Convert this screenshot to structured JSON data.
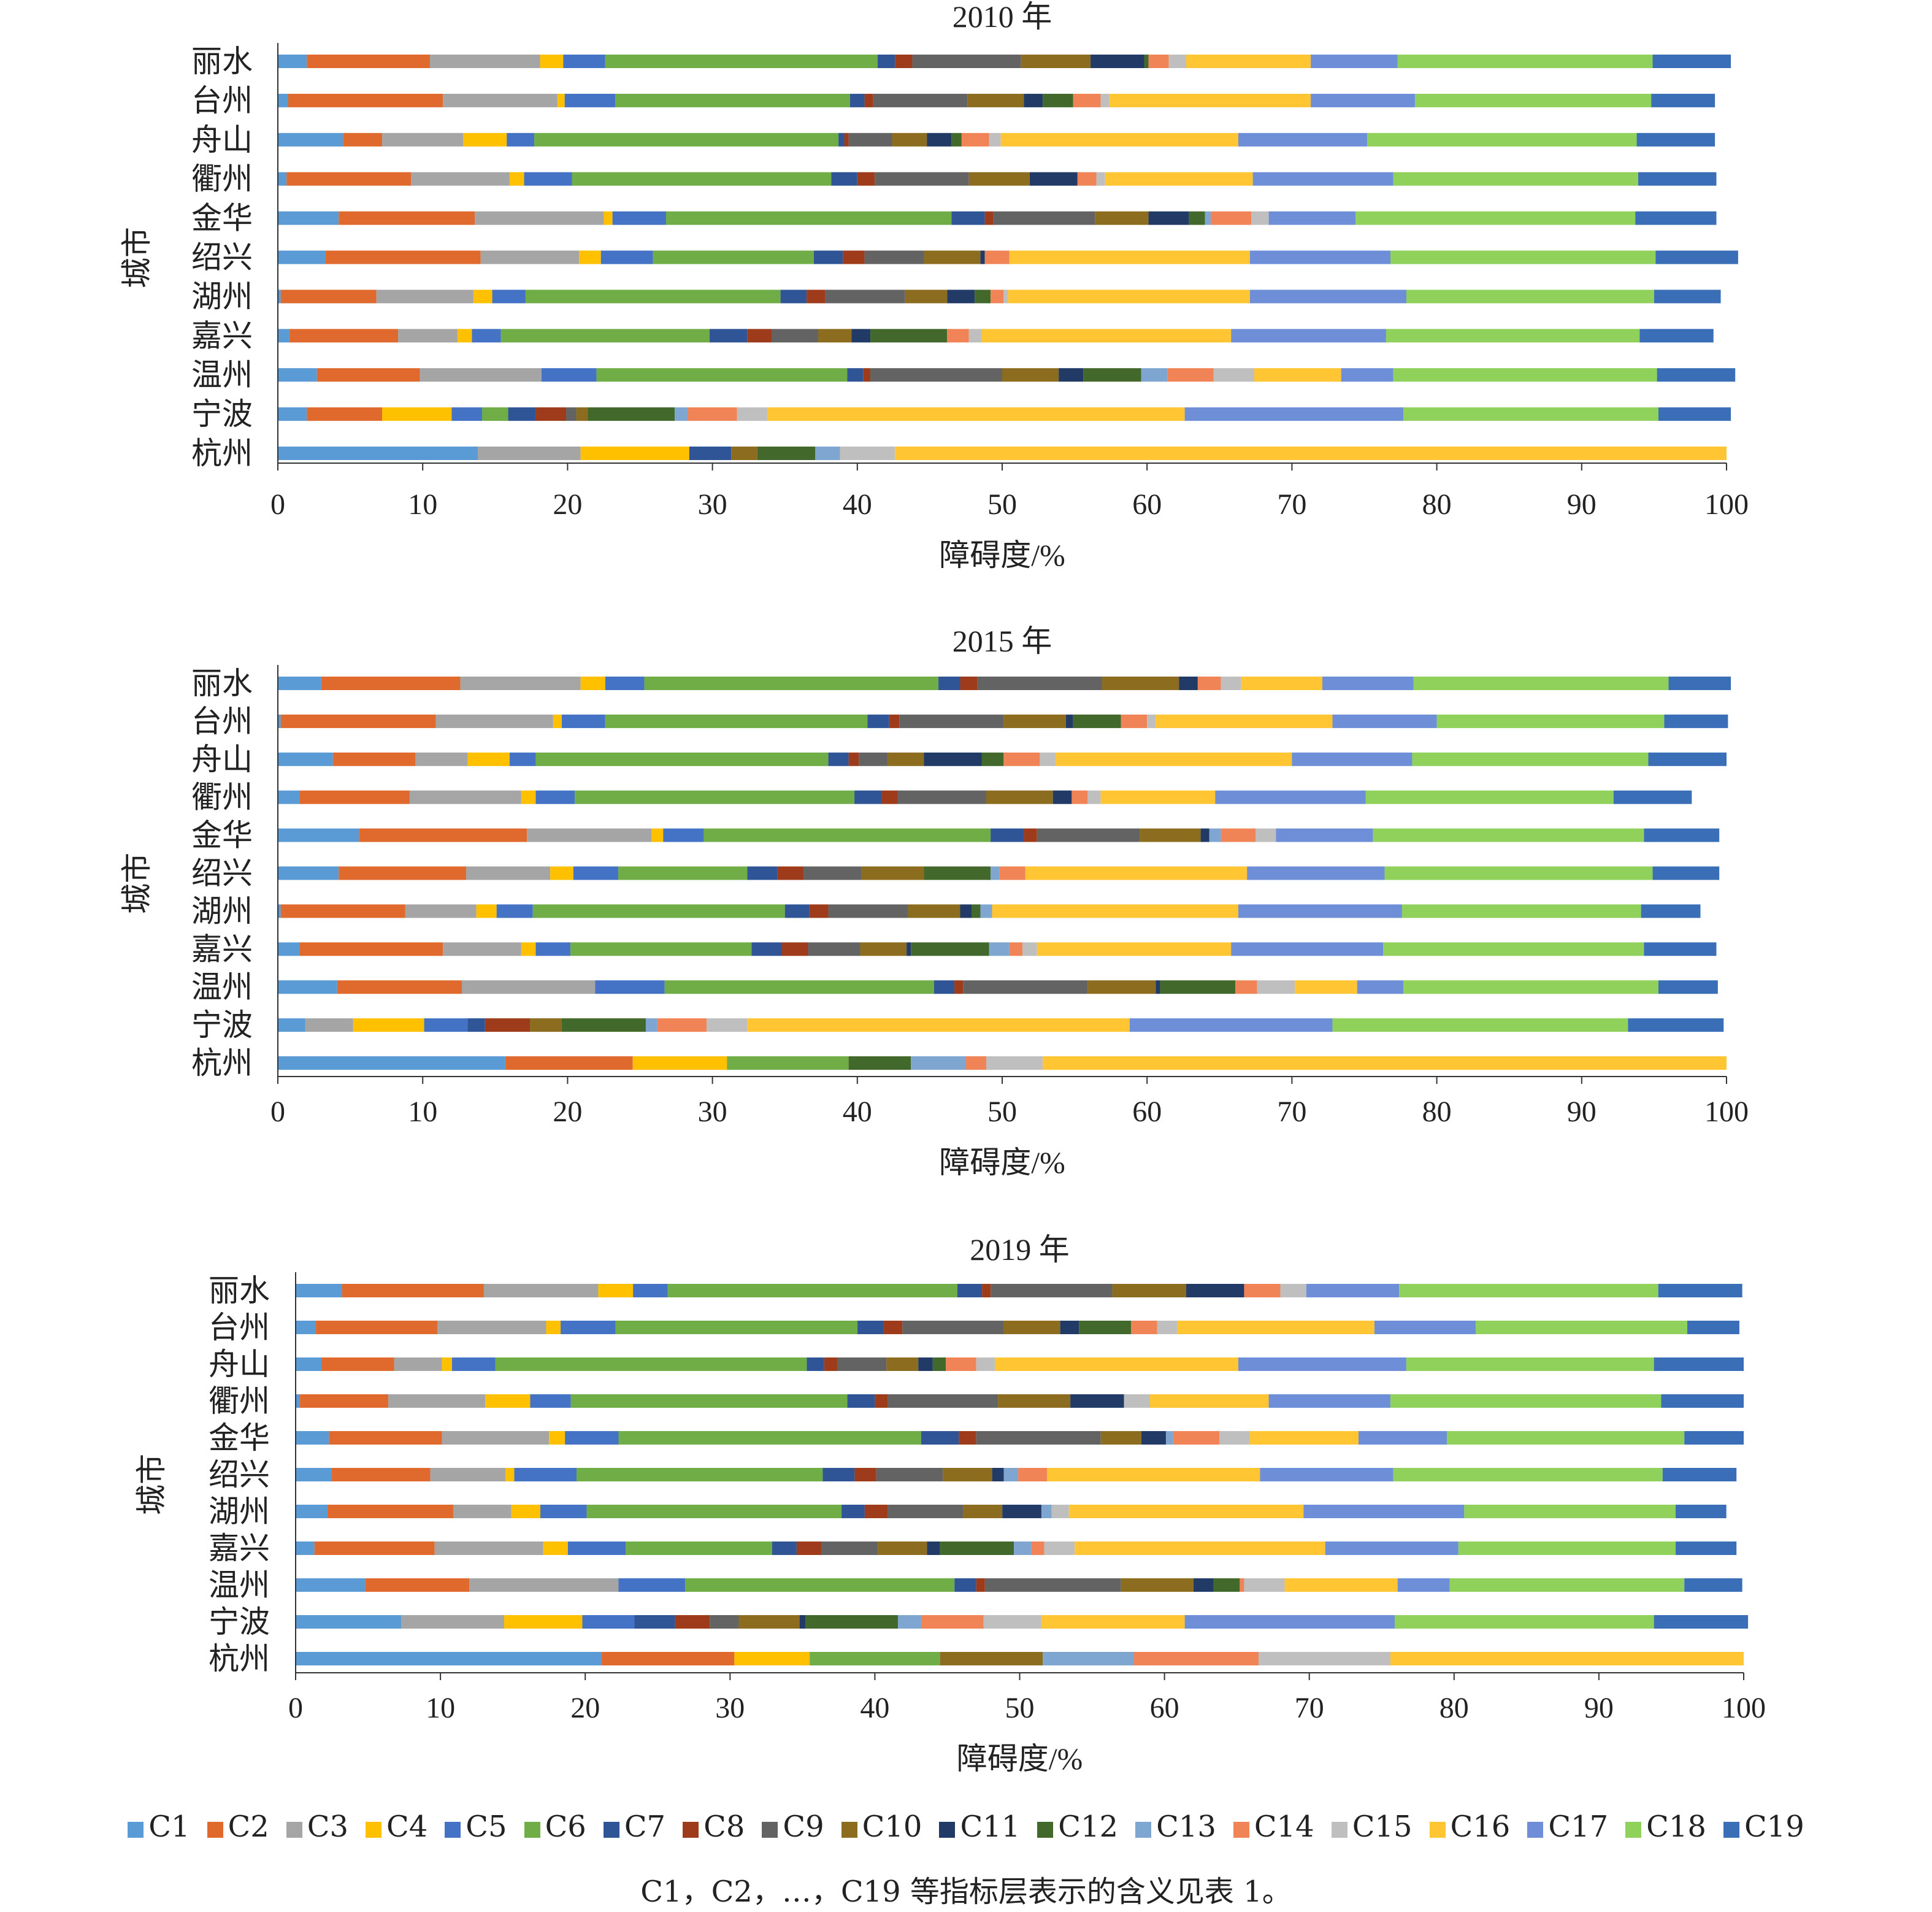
{
  "chart_data": [
    {
      "type": "bar",
      "orientation": "horizontal",
      "stacked": true,
      "title": "2010 年",
      "xlabel": "障碍度/%",
      "ylabel": "城市",
      "xlim": [
        0,
        100
      ],
      "xticks": [
        0,
        10,
        20,
        30,
        40,
        50,
        60,
        70,
        80,
        90,
        100
      ],
      "grid": false,
      "categories": [
        "丽水",
        "台州",
        "舟山",
        "衢州",
        "金华",
        "绍兴",
        "湖州",
        "嘉兴",
        "温州",
        "宁波",
        "杭州"
      ],
      "series": [
        {
          "name": "C1",
          "values": [
            2.0,
            0.7,
            4.5,
            0.6,
            4.2,
            3.3,
            0.2,
            0.8,
            2.7,
            2.0,
            13.8
          ]
        },
        {
          "name": "C2",
          "values": [
            8.5,
            10.7,
            2.7,
            8.6,
            9.4,
            10.7,
            6.6,
            7.5,
            7.1,
            5.2,
            0.0
          ]
        },
        {
          "name": "C3",
          "values": [
            7.6,
            7.9,
            5.6,
            6.8,
            8.9,
            6.8,
            6.7,
            4.1,
            8.4,
            0.0,
            7.1
          ]
        },
        {
          "name": "C4",
          "values": [
            1.6,
            0.5,
            3.0,
            1.0,
            0.6,
            1.5,
            1.3,
            1.0,
            0.0,
            4.8,
            7.5
          ]
        },
        {
          "name": "C5",
          "values": [
            2.9,
            3.5,
            1.9,
            3.3,
            3.7,
            3.6,
            2.3,
            2.0,
            3.8,
            2.1,
            0.0
          ]
        },
        {
          "name": "C6",
          "values": [
            18.8,
            16.2,
            21.0,
            17.9,
            19.7,
            11.1,
            17.6,
            14.4,
            17.3,
            1.8,
            0.0
          ]
        },
        {
          "name": "C7",
          "values": [
            1.2,
            1.0,
            0.4,
            1.8,
            2.3,
            2.0,
            1.8,
            2.6,
            1.1,
            1.9,
            2.9
          ]
        },
        {
          "name": "C8",
          "values": [
            1.2,
            0.6,
            0.3,
            1.2,
            0.6,
            1.5,
            1.3,
            1.7,
            0.5,
            2.1,
            0.0
          ]
        },
        {
          "name": "C9",
          "values": [
            7.5,
            6.5,
            3.0,
            6.5,
            7.0,
            4.1,
            5.5,
            3.2,
            9.1,
            0.7,
            0.0
          ]
        },
        {
          "name": "C10",
          "values": [
            4.8,
            3.9,
            2.4,
            4.2,
            3.7,
            3.9,
            2.9,
            2.3,
            3.9,
            0.8,
            1.8
          ]
        },
        {
          "name": "C11",
          "values": [
            3.7,
            1.3,
            1.7,
            3.3,
            2.8,
            0.3,
            1.9,
            1.3,
            1.7,
            0.0,
            0.0
          ]
        },
        {
          "name": "C12",
          "values": [
            0.3,
            2.1,
            0.7,
            0.0,
            1.1,
            0.0,
            1.1,
            5.3,
            4.0,
            6.0,
            4.0
          ]
        },
        {
          "name": "C13",
          "values": [
            0.0,
            0.0,
            0.0,
            0.0,
            0.4,
            0.0,
            0.0,
            0.0,
            1.8,
            0.9,
            1.7
          ]
        },
        {
          "name": "C14",
          "values": [
            1.4,
            1.9,
            1.9,
            1.3,
            2.8,
            1.7,
            0.9,
            1.5,
            3.2,
            3.4,
            0.0
          ]
        },
        {
          "name": "C15",
          "values": [
            1.2,
            0.6,
            0.8,
            0.6,
            1.2,
            0.0,
            0.3,
            0.9,
            2.8,
            2.1,
            3.8
          ]
        },
        {
          "name": "C16",
          "values": [
            8.6,
            13.9,
            16.4,
            10.2,
            0.0,
            16.6,
            16.7,
            17.2,
            6.0,
            28.8,
            57.4
          ]
        },
        {
          "name": "C17",
          "values": [
            6.0,
            7.2,
            8.9,
            9.7,
            6.0,
            9.7,
            10.8,
            10.7,
            3.6,
            15.1,
            0.0
          ]
        },
        {
          "name": "C18",
          "values": [
            17.6,
            16.3,
            18.6,
            16.9,
            19.3,
            18.3,
            17.1,
            17.5,
            18.2,
            17.6,
            0.0
          ]
        },
        {
          "name": "C19",
          "values": [
            5.4,
            4.4,
            5.4,
            5.4,
            5.6,
            5.7,
            4.6,
            5.1,
            5.4,
            5.0,
            0.0
          ]
        }
      ]
    },
    {
      "type": "bar",
      "orientation": "horizontal",
      "stacked": true,
      "title": "2015 年",
      "xlabel": "障碍度/%",
      "ylabel": "城市",
      "xlim": [
        0,
        100
      ],
      "xticks": [
        0,
        10,
        20,
        30,
        40,
        50,
        60,
        70,
        80,
        90,
        100
      ],
      "grid": false,
      "categories": [
        "丽水",
        "台州",
        "舟山",
        "衢州",
        "金华",
        "绍兴",
        "湖州",
        "嘉兴",
        "温州",
        "宁波",
        "杭州"
      ],
      "series": [
        {
          "name": "C1",
          "values": [
            3.0,
            0.2,
            3.8,
            1.5,
            5.6,
            4.2,
            0.2,
            1.5,
            4.1,
            1.9,
            15.7
          ]
        },
        {
          "name": "C2",
          "values": [
            9.6,
            10.7,
            5.7,
            7.6,
            11.6,
            8.8,
            8.6,
            9.9,
            8.6,
            0.0,
            8.8
          ]
        },
        {
          "name": "C3",
          "values": [
            8.3,
            8.1,
            3.6,
            7.7,
            8.6,
            5.8,
            4.9,
            5.4,
            9.2,
            3.3,
            0.0
          ]
        },
        {
          "name": "C4",
          "values": [
            1.7,
            0.6,
            2.9,
            1.0,
            0.8,
            1.6,
            1.4,
            1.0,
            0.0,
            4.9,
            6.5
          ]
        },
        {
          "name": "C5",
          "values": [
            2.7,
            3.0,
            1.8,
            2.7,
            2.8,
            3.1,
            2.5,
            2.4,
            4.8,
            3.0,
            0.0
          ]
        },
        {
          "name": "C6",
          "values": [
            20.3,
            18.1,
            20.2,
            19.3,
            19.8,
            8.9,
            17.4,
            12.5,
            18.6,
            0.0,
            8.4
          ]
        },
        {
          "name": "C7",
          "values": [
            1.5,
            1.5,
            1.4,
            1.9,
            2.3,
            2.1,
            1.7,
            2.1,
            1.4,
            1.2,
            0.0
          ]
        },
        {
          "name": "C8",
          "values": [
            1.2,
            0.7,
            0.7,
            1.1,
            0.9,
            1.8,
            1.3,
            1.8,
            0.6,
            3.1,
            0.0
          ]
        },
        {
          "name": "C9",
          "values": [
            8.6,
            7.2,
            2.0,
            6.1,
            7.1,
            4.0,
            5.5,
            3.6,
            8.6,
            0.0,
            0.0
          ]
        },
        {
          "name": "C10",
          "values": [
            5.3,
            4.3,
            2.5,
            4.6,
            4.2,
            4.3,
            3.6,
            3.2,
            4.7,
            2.2,
            0.0
          ]
        },
        {
          "name": "C11",
          "values": [
            1.3,
            0.5,
            4.0,
            1.3,
            0.6,
            0.0,
            0.8,
            0.3,
            0.3,
            0.0,
            0.0
          ]
        },
        {
          "name": "C12",
          "values": [
            0.0,
            3.3,
            1.5,
            0.0,
            0.0,
            4.6,
            0.6,
            5.4,
            5.2,
            5.8,
            4.3
          ]
        },
        {
          "name": "C13",
          "values": [
            0.0,
            0.0,
            0.0,
            0.0,
            0.8,
            0.6,
            0.8,
            1.4,
            0.0,
            0.8,
            3.8
          ]
        },
        {
          "name": "C14",
          "values": [
            1.6,
            1.8,
            2.5,
            1.1,
            2.4,
            1.8,
            0.0,
            0.9,
            1.5,
            3.4,
            1.4
          ]
        },
        {
          "name": "C15",
          "values": [
            1.4,
            0.6,
            1.1,
            0.9,
            1.4,
            0.0,
            0.0,
            1.0,
            2.6,
            2.8,
            3.9
          ]
        },
        {
          "name": "C16",
          "values": [
            5.6,
            12.2,
            16.3,
            7.9,
            0.0,
            15.3,
            17.0,
            13.4,
            4.3,
            26.4,
            47.2
          ]
        },
        {
          "name": "C17",
          "values": [
            6.3,
            7.2,
            8.3,
            10.4,
            6.7,
            9.5,
            11.3,
            10.5,
            3.2,
            14.0,
            0.0
          ]
        },
        {
          "name": "C18",
          "values": [
            17.6,
            15.7,
            16.3,
            17.1,
            18.7,
            18.5,
            16.5,
            18.0,
            17.6,
            20.4,
            0.0
          ]
        },
        {
          "name": "C19",
          "values": [
            4.3,
            4.4,
            5.4,
            5.4,
            5.2,
            4.6,
            4.1,
            5.0,
            4.1,
            6.6,
            0.0
          ]
        }
      ]
    },
    {
      "type": "bar",
      "orientation": "horizontal",
      "stacked": true,
      "title": "2019 年",
      "xlabel": "障碍度/%",
      "ylabel": "城市",
      "xlim": [
        0,
        100
      ],
      "xticks": [
        0,
        10,
        20,
        30,
        40,
        50,
        60,
        70,
        80,
        90,
        100
      ],
      "grid": false,
      "categories": [
        "丽水",
        "台州",
        "舟山",
        "衢州",
        "金华",
        "绍兴",
        "湖州",
        "嘉兴",
        "温州",
        "宁波",
        "杭州"
      ],
      "series": [
        {
          "name": "C1",
          "values": [
            3.2,
            1.4,
            1.8,
            0.3,
            2.3,
            2.5,
            2.2,
            1.3,
            4.8,
            7.3,
            21.1
          ]
        },
        {
          "name": "C2",
          "values": [
            9.8,
            8.4,
            5.0,
            6.1,
            7.8,
            6.8,
            8.7,
            8.3,
            7.2,
            0.0,
            9.2
          ]
        },
        {
          "name": "C3",
          "values": [
            7.9,
            7.5,
            3.3,
            6.7,
            7.4,
            5.2,
            4.0,
            7.5,
            10.3,
            7.1,
            0.0
          ]
        },
        {
          "name": "C4",
          "values": [
            2.4,
            1.0,
            0.7,
            3.1,
            1.1,
            0.6,
            2.0,
            1.7,
            0.0,
            5.4,
            5.2
          ]
        },
        {
          "name": "C5",
          "values": [
            2.4,
            3.8,
            3.0,
            2.8,
            3.7,
            4.3,
            3.2,
            4.0,
            4.6,
            3.6,
            0.0
          ]
        },
        {
          "name": "C6",
          "values": [
            20.0,
            16.7,
            21.5,
            19.1,
            20.9,
            17.0,
            17.6,
            10.1,
            18.6,
            0.0,
            9.0
          ]
        },
        {
          "name": "C7",
          "values": [
            1.7,
            1.8,
            1.2,
            1.9,
            2.6,
            2.2,
            1.6,
            1.7,
            1.5,
            2.8,
            0.0
          ]
        },
        {
          "name": "C8",
          "values": [
            0.6,
            1.3,
            0.9,
            0.9,
            1.2,
            1.5,
            1.6,
            1.7,
            0.6,
            2.4,
            0.0
          ]
        },
        {
          "name": "C9",
          "values": [
            8.4,
            7.0,
            3.4,
            7.6,
            8.6,
            4.6,
            5.2,
            3.9,
            9.4,
            2.0,
            0.0
          ]
        },
        {
          "name": "C10",
          "values": [
            5.1,
            3.9,
            2.2,
            5.0,
            2.8,
            3.4,
            2.7,
            3.4,
            5.0,
            4.2,
            7.1
          ]
        },
        {
          "name": "C11",
          "values": [
            4.0,
            1.3,
            1.0,
            3.7,
            1.7,
            0.8,
            2.7,
            0.9,
            1.4,
            0.4,
            0.0
          ]
        },
        {
          "name": "C12",
          "values": [
            0.0,
            3.6,
            0.9,
            0.0,
            0.0,
            0.0,
            0.0,
            5.1,
            1.8,
            6.4,
            0.0
          ]
        },
        {
          "name": "C13",
          "values": [
            0.0,
            0.0,
            0.0,
            0.0,
            0.5,
            1.0,
            0.7,
            1.2,
            0.0,
            1.6,
            6.3
          ]
        },
        {
          "name": "C14",
          "values": [
            2.5,
            1.8,
            2.1,
            0.0,
            3.2,
            2.0,
            0.0,
            0.9,
            0.3,
            4.3,
            8.6
          ]
        },
        {
          "name": "C15",
          "values": [
            1.8,
            1.4,
            1.3,
            1.8,
            2.1,
            0.0,
            1.2,
            2.1,
            2.8,
            4.0,
            9.1
          ]
        },
        {
          "name": "C16",
          "values": [
            0.0,
            13.6,
            16.8,
            8.2,
            7.5,
            14.7,
            16.2,
            17.3,
            7.8,
            9.9,
            24.4
          ]
        },
        {
          "name": "C17",
          "values": [
            6.4,
            7.0,
            11.6,
            8.4,
            6.1,
            9.2,
            11.1,
            9.2,
            3.6,
            14.5,
            0.0
          ]
        },
        {
          "name": "C18",
          "values": [
            17.9,
            14.6,
            17.1,
            18.7,
            16.4,
            18.6,
            14.6,
            15.0,
            16.2,
            17.9,
            0.0
          ]
        },
        {
          "name": "C19",
          "values": [
            5.8,
            3.6,
            6.2,
            5.7,
            4.1,
            5.1,
            3.5,
            4.2,
            4.0,
            6.5,
            0.0
          ]
        }
      ]
    }
  ],
  "legend": {
    "items": [
      {
        "label": "C1",
        "color": "#5b9bd5"
      },
      {
        "label": "C2",
        "color": "#e06a2e"
      },
      {
        "label": "C3",
        "color": "#a5a5a5"
      },
      {
        "label": "C4",
        "color": "#ffc000"
      },
      {
        "label": "C5",
        "color": "#4472c4"
      },
      {
        "label": "C6",
        "color": "#70ad47"
      },
      {
        "label": "C7",
        "color": "#2f5597"
      },
      {
        "label": "C8",
        "color": "#9e3b1a"
      },
      {
        "label": "C9",
        "color": "#636363"
      },
      {
        "label": "C10",
        "color": "#8c6d1f"
      },
      {
        "label": "C11",
        "color": "#223a66"
      },
      {
        "label": "C12",
        "color": "#43682b"
      },
      {
        "label": "C13",
        "color": "#7ea6d1"
      },
      {
        "label": "C14",
        "color": "#f08456"
      },
      {
        "label": "C15",
        "color": "#bfbfbf"
      },
      {
        "label": "C16",
        "color": "#ffc533"
      },
      {
        "label": "C17",
        "color": "#6f8ed8"
      },
      {
        "label": "C18",
        "color": "#8fd15a"
      },
      {
        "label": "C19",
        "color": "#3a6fb8"
      }
    ]
  },
  "footnote": "C1，C2，…，C19 等指标层表示的含义见表 1。"
}
